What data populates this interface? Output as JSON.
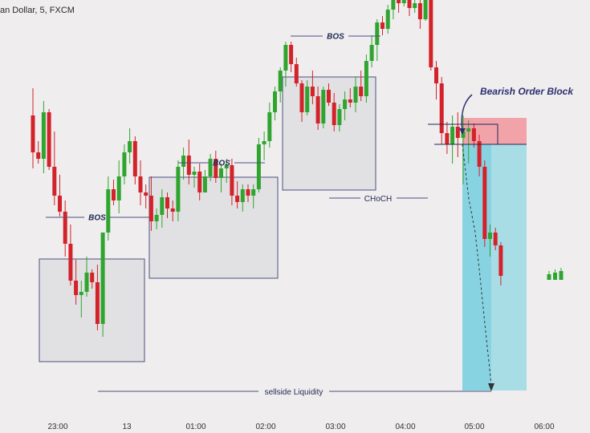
{
  "header": {
    "symbol_title": "an Dollar, 5, FXCM"
  },
  "colors": {
    "background": "#efedee",
    "bull": "#2fa52f",
    "bear": "#d3222a",
    "box_fill": "#dcdcdf",
    "box_stroke": "#4d4f80",
    "annotation_line": "#4d4f80",
    "order_block_fill": "#f2a3a9",
    "target_zone_fill": "#a9dde6",
    "target_zone_strong": "#7ecfdf"
  },
  "chart_data": {
    "type": "candlestick",
    "title": "",
    "x_ticks": [
      "23:00",
      "13",
      "01:00",
      "02:00",
      "03:00",
      "04:00",
      "05:00",
      "06:00"
    ],
    "annotations": {
      "bos": [
        "BOS",
        "BOS",
        "BOS"
      ],
      "choch": "CHoCH",
      "order_block": "Bearish Order Block",
      "liquidity": "sellside Liquidity"
    },
    "candles": [
      {
        "o": 428,
        "h": 445,
        "l": 395,
        "c": 405
      },
      {
        "o": 405,
        "h": 412,
        "l": 398,
        "c": 401
      },
      {
        "o": 401,
        "h": 437,
        "l": 392,
        "c": 430
      },
      {
        "o": 430,
        "h": 432,
        "l": 394,
        "c": 396
      },
      {
        "o": 396,
        "h": 418,
        "l": 372,
        "c": 378
      },
      {
        "o": 378,
        "h": 391,
        "l": 365,
        "c": 368
      },
      {
        "o": 368,
        "h": 375,
        "l": 340,
        "c": 348
      },
      {
        "o": 348,
        "h": 360,
        "l": 322,
        "c": 325
      },
      {
        "o": 325,
        "h": 338,
        "l": 310,
        "c": 316
      },
      {
        "o": 316,
        "h": 325,
        "l": 302,
        "c": 318
      },
      {
        "o": 318,
        "h": 340,
        "l": 315,
        "c": 330
      },
      {
        "o": 330,
        "h": 332,
        "l": 320,
        "c": 324
      },
      {
        "o": 324,
        "h": 335,
        "l": 294,
        "c": 298
      },
      {
        "o": 298,
        "h": 355,
        "l": 290,
        "c": 355
      },
      {
        "o": 355,
        "h": 390,
        "l": 350,
        "c": 382
      },
      {
        "o": 382,
        "h": 388,
        "l": 372,
        "c": 375
      },
      {
        "o": 375,
        "h": 400,
        "l": 367,
        "c": 390
      },
      {
        "o": 390,
        "h": 410,
        "l": 385,
        "c": 405
      },
      {
        "o": 405,
        "h": 420,
        "l": 398,
        "c": 412
      },
      {
        "o": 412,
        "h": 415,
        "l": 385,
        "c": 390
      },
      {
        "o": 390,
        "h": 400,
        "l": 372,
        "c": 380
      },
      {
        "o": 380,
        "h": 385,
        "l": 370,
        "c": 378
      },
      {
        "o": 378,
        "h": 390,
        "l": 356,
        "c": 362
      },
      {
        "o": 362,
        "h": 370,
        "l": 357,
        "c": 366
      },
      {
        "o": 366,
        "h": 382,
        "l": 358,
        "c": 377
      },
      {
        "o": 377,
        "h": 380,
        "l": 364,
        "c": 370
      },
      {
        "o": 370,
        "h": 375,
        "l": 362,
        "c": 368
      },
      {
        "o": 368,
        "h": 400,
        "l": 362,
        "c": 396
      },
      {
        "o": 396,
        "h": 408,
        "l": 388,
        "c": 403
      },
      {
        "o": 403,
        "h": 413,
        "l": 385,
        "c": 391
      },
      {
        "o": 391,
        "h": 396,
        "l": 383,
        "c": 393
      },
      {
        "o": 393,
        "h": 398,
        "l": 375,
        "c": 380
      },
      {
        "o": 380,
        "h": 394,
        "l": 380,
        "c": 390
      },
      {
        "o": 390,
        "h": 404,
        "l": 387,
        "c": 401
      },
      {
        "o": 401,
        "h": 406,
        "l": 386,
        "c": 389
      },
      {
        "o": 389,
        "h": 398,
        "l": 380,
        "c": 395
      },
      {
        "o": 395,
        "h": 401,
        "l": 386,
        "c": 397
      },
      {
        "o": 397,
        "h": 401,
        "l": 372,
        "c": 378
      },
      {
        "o": 378,
        "h": 387,
        "l": 370,
        "c": 374
      },
      {
        "o": 374,
        "h": 385,
        "l": 368,
        "c": 382
      },
      {
        "o": 382,
        "h": 385,
        "l": 374,
        "c": 378
      },
      {
        "o": 378,
        "h": 385,
        "l": 370,
        "c": 382
      },
      {
        "o": 382,
        "h": 414,
        "l": 380,
        "c": 410
      },
      {
        "o": 410,
        "h": 418,
        "l": 400,
        "c": 412
      },
      {
        "o": 412,
        "h": 436,
        "l": 408,
        "c": 430
      },
      {
        "o": 430,
        "h": 446,
        "l": 425,
        "c": 443
      },
      {
        "o": 443,
        "h": 458,
        "l": 436,
        "c": 456
      },
      {
        "o": 456,
        "h": 474,
        "l": 446,
        "c": 472
      },
      {
        "o": 472,
        "h": 474,
        "l": 455,
        "c": 460
      },
      {
        "o": 460,
        "h": 464,
        "l": 446,
        "c": 448
      },
      {
        "o": 448,
        "h": 450,
        "l": 424,
        "c": 430
      },
      {
        "o": 430,
        "h": 450,
        "l": 428,
        "c": 446
      },
      {
        "o": 446,
        "h": 456,
        "l": 435,
        "c": 440
      },
      {
        "o": 440,
        "h": 446,
        "l": 419,
        "c": 423
      },
      {
        "o": 423,
        "h": 446,
        "l": 420,
        "c": 444
      },
      {
        "o": 444,
        "h": 448,
        "l": 434,
        "c": 436
      },
      {
        "o": 436,
        "h": 442,
        "l": 418,
        "c": 422
      },
      {
        "o": 422,
        "h": 435,
        "l": 418,
        "c": 432
      },
      {
        "o": 432,
        "h": 443,
        "l": 425,
        "c": 438
      },
      {
        "o": 438,
        "h": 445,
        "l": 433,
        "c": 436
      },
      {
        "o": 436,
        "h": 452,
        "l": 430,
        "c": 446
      },
      {
        "o": 446,
        "h": 456,
        "l": 437,
        "c": 440
      },
      {
        "o": 440,
        "h": 466,
        "l": 436,
        "c": 462
      },
      {
        "o": 462,
        "h": 478,
        "l": 458,
        "c": 472
      },
      {
        "o": 472,
        "h": 488,
        "l": 462,
        "c": 486
      },
      {
        "o": 486,
        "h": 490,
        "l": 478,
        "c": 482
      },
      {
        "o": 482,
        "h": 497,
        "l": 479,
        "c": 494
      },
      {
        "o": 494,
        "h": 510,
        "l": 488,
        "c": 503
      },
      {
        "o": 503,
        "h": 507,
        "l": 492,
        "c": 498
      },
      {
        "o": 498,
        "h": 514,
        "l": 496,
        "c": 506
      },
      {
        "o": 506,
        "h": 508,
        "l": 490,
        "c": 495
      },
      {
        "o": 495,
        "h": 510,
        "l": 492,
        "c": 498
      },
      {
        "o": 498,
        "h": 502,
        "l": 482,
        "c": 488
      },
      {
        "o": 488,
        "h": 503,
        "l": 487,
        "c": 500
      },
      {
        "o": 500,
        "h": 504,
        "l": 456,
        "c": 458
      },
      {
        "o": 458,
        "h": 462,
        "l": 438,
        "c": 448
      },
      {
        "o": 448,
        "h": 452,
        "l": 410,
        "c": 417
      },
      {
        "o": 417,
        "h": 424,
        "l": 404,
        "c": 410
      },
      {
        "o": 410,
        "h": 428,
        "l": 398,
        "c": 421
      },
      {
        "o": 421,
        "h": 430,
        "l": 402,
        "c": 414
      },
      {
        "o": 414,
        "h": 428,
        "l": 385,
        "c": 418
      },
      {
        "o": 418,
        "h": 425,
        "l": 398,
        "c": 420
      },
      {
        "o": 420,
        "h": 423,
        "l": 408,
        "c": 412
      },
      {
        "o": 412,
        "h": 416,
        "l": 390,
        "c": 396
      },
      {
        "o": 396,
        "h": 400,
        "l": 346,
        "c": 351
      },
      {
        "o": 351,
        "h": 360,
        "l": 340,
        "c": 355
      },
      {
        "o": 355,
        "h": 358,
        "l": 344,
        "c": 347
      },
      {
        "o": 347,
        "h": 349,
        "l": 322,
        "c": 328
      }
    ],
    "trailing_candles": [
      {
        "o": 327,
        "h": 331,
        "l": 326,
        "c": 329
      },
      {
        "o": 327,
        "h": 332,
        "l": 326,
        "c": 330
      },
      {
        "o": 327,
        "h": 333,
        "l": 326,
        "c": 331
      }
    ]
  }
}
